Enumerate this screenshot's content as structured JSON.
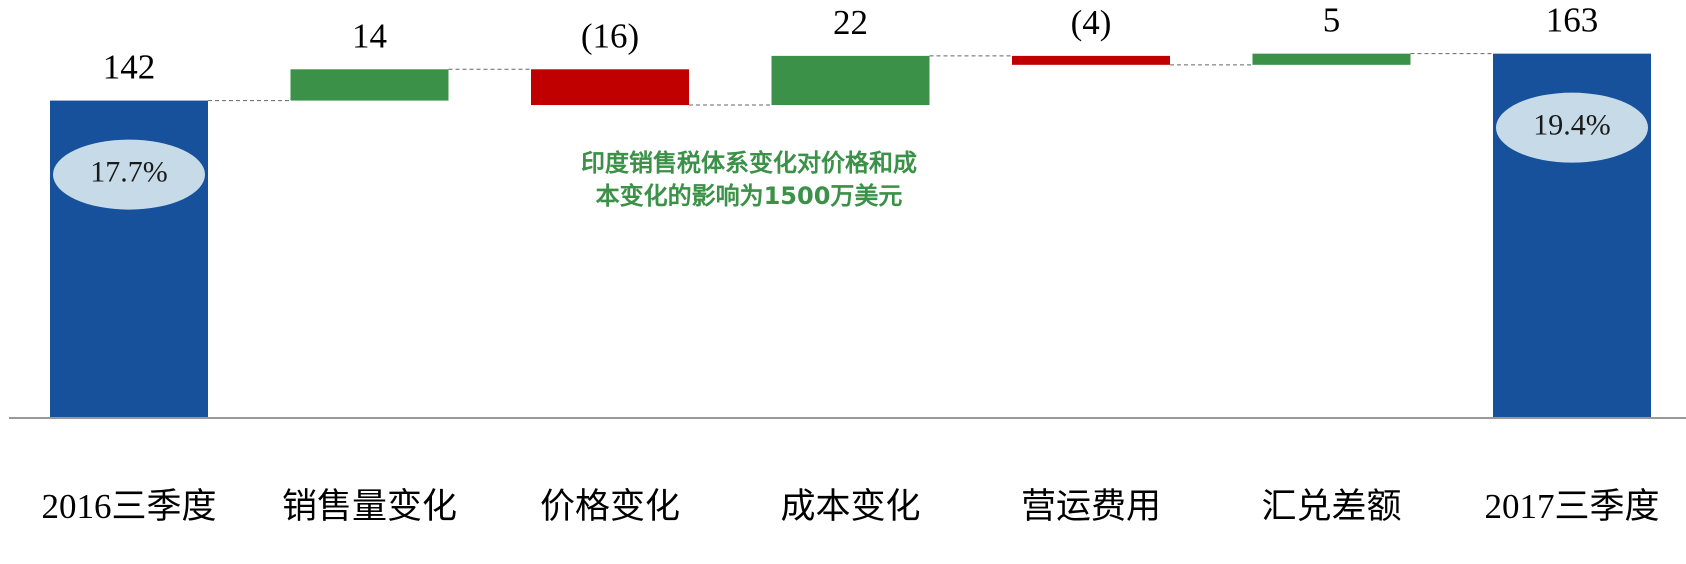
{
  "chart_data": {
    "type": "waterfall",
    "categories": [
      "2016三季度",
      "销售量变化",
      "价格变化",
      "成本变化",
      "营运费用",
      "汇兑差额",
      "2017三季度"
    ],
    "values": [
      142,
      14,
      -16,
      22,
      -4,
      5,
      163
    ],
    "value_labels": [
      "142",
      "14",
      "(16)",
      "22",
      "(4)",
      "5",
      "163"
    ],
    "measures": [
      "total",
      "relative",
      "relative",
      "relative",
      "relative",
      "relative",
      "total"
    ],
    "value_badges": [
      "17.7%",
      null,
      null,
      null,
      null,
      null,
      "19.4%"
    ],
    "colors": {
      "total": "#17519b",
      "increase": "#3a9147",
      "decrease": "#c00000"
    },
    "annotation": [
      "印度销售税体系变化对价格和成",
      "本变化的影响为1500万美元"
    ],
    "ylim": [
      0,
      187
    ]
  }
}
